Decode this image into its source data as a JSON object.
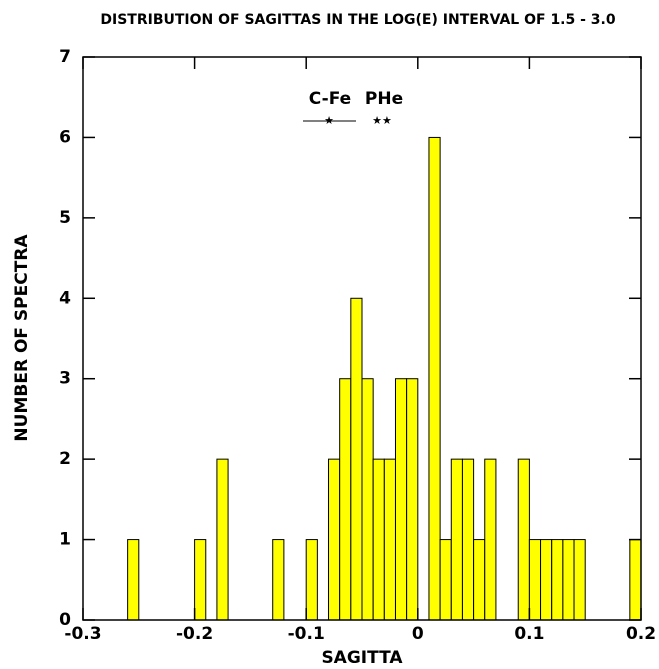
{
  "chart_data": {
    "type": "histogram",
    "title": "DISTRIBUTION OF SAGITTAS IN THE LOG(E) INTERVAL OF 1.5 - 3.0",
    "x_label": "SAGITTA",
    "y_label": "NUMBER OF SPECTRA",
    "annotations": [
      "C-Fe",
      "PHe"
    ],
    "color": "#ffff00",
    "bins": [
      -0.3,
      -0.29,
      -0.28,
      -0.27,
      -0.26,
      -0.25,
      -0.24,
      -0.23,
      -0.22,
      -0.21,
      -0.2,
      -0.19,
      -0.18,
      -0.17,
      -0.16,
      -0.15,
      -0.14,
      -0.13,
      -0.12,
      -0.11,
      -0.1,
      -0.09,
      -0.08,
      -0.07,
      -0.06,
      -0.05,
      -0.04,
      -0.03,
      -0.02,
      -0.01,
      0,
      0.01,
      0.02,
      0.03,
      0.04,
      0.05,
      0.06,
      0.07,
      0.08,
      0.09,
      0.1,
      0.11,
      0.12,
      0.13,
      0.14,
      0.15,
      0.16,
      0.17,
      0.18,
      0.19,
      0.2
    ],
    "values": [
      0,
      0,
      0,
      0,
      1,
      0,
      0,
      0,
      0,
      0,
      1,
      0,
      2,
      0,
      0,
      0,
      0,
      1,
      0,
      0,
      1,
      0,
      2,
      3,
      4,
      3,
      2,
      2,
      3,
      3,
      0,
      6,
      1,
      2,
      2,
      1,
      2,
      0,
      0,
      2,
      1,
      1,
      1,
      1,
      1,
      0,
      0,
      0,
      0,
      1
    ],
    "xlim": [
      -0.3,
      0.2
    ],
    "xticks": [
      -0.3,
      -0.2,
      -0.1,
      0,
      0.1,
      0.2
    ],
    "ylim": [
      0,
      7
    ],
    "yticks": [
      0,
      1,
      2,
      3,
      4,
      5,
      6,
      7
    ]
  }
}
